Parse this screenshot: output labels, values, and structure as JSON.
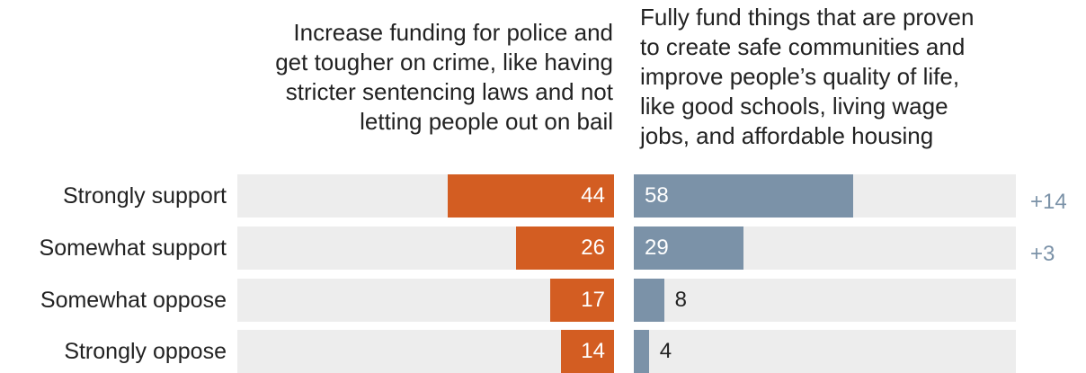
{
  "chart_data": {
    "type": "bar",
    "categories": [
      "Strongly support",
      "Somewhat support",
      "Somewhat oppose",
      "Strongly oppose"
    ],
    "series": [
      {
        "name": "Increase funding for police and get tougher on crime, like having stricter sentencing laws and not letting people out on bail",
        "values": [
          44,
          26,
          17,
          14
        ],
        "color": "#d35d22"
      },
      {
        "name": "Fully fund things that are proven to create safe communities and improve people’s quality of life, like good schools, living wage jobs, and affordable housing",
        "values": [
          58,
          29,
          8,
          4
        ],
        "color": "#7b92a8"
      }
    ],
    "differences": [
      "+14",
      "+3",
      "",
      ""
    ],
    "header_left_lines": [
      "Increase funding for police and",
      "get tougher on crime, like having",
      "stricter sentencing laws and not",
      "letting people out on bail"
    ],
    "header_right_lines": [
      "Fully fund things that are proven",
      "to create safe communities and",
      "improve people’s quality of life,",
      "like good schools, living wage",
      "jobs, and affordable housing"
    ],
    "track_color": "#ededed",
    "text_color": "#222222",
    "difference_color": "#7b92a8"
  }
}
